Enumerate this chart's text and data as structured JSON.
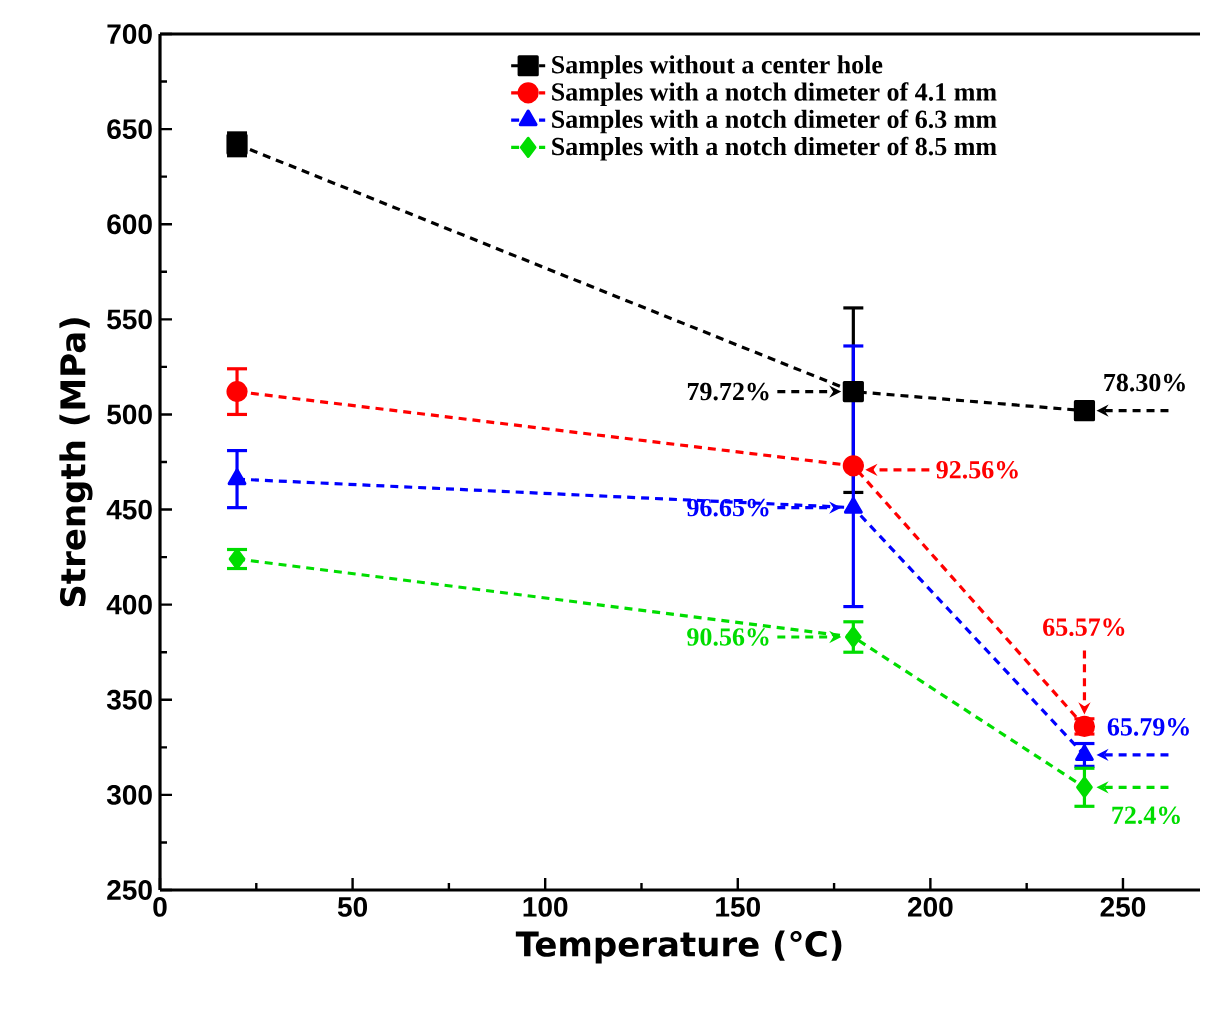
{
  "chart_data": {
    "type": "line",
    "xlabel": "Temperature (℃)",
    "ylabel": "Strength (MPa)",
    "x": [
      20,
      180,
      240
    ],
    "xlim": [
      0,
      270
    ],
    "ylim": [
      250,
      700
    ],
    "xticks": [
      0,
      50,
      100,
      150,
      200,
      250
    ],
    "yticks": [
      250,
      300,
      350,
      400,
      450,
      500,
      550,
      600,
      650,
      700
    ],
    "grid": false,
    "legend": "top right",
    "line_style": "dashed",
    "series": [
      {
        "name": "Samples without a center hole",
        "color": "#000000",
        "marker": "square",
        "values": [
          642,
          512,
          502
        ],
        "errors": [
          6,
          [
            459,
            556
          ],
          4
        ]
      },
      {
        "name": "Samples with a notch dimeter of 4.1 mm",
        "color": "#ff0000",
        "marker": "circle",
        "values": [
          512,
          473,
          336
        ],
        "errors": [
          12,
          null,
          4
        ]
      },
      {
        "name": "Samples with a notch dimeter of 6.3 mm",
        "color": "#0000ff",
        "marker": "triangle",
        "values": [
          466,
          451,
          321
        ],
        "errors": [
          15,
          [
            399,
            536
          ],
          6
        ]
      },
      {
        "name": "Samples with a notch dimeter of 8.5 mm",
        "color": "#00dd00",
        "marker": "diamond",
        "values": [
          424,
          383,
          304
        ],
        "errors": [
          5,
          8,
          10
        ]
      }
    ],
    "annotations": [
      "79.72%",
      "78.30%",
      "92.56%",
      "65.57%",
      "96.65%",
      "65.79%",
      "90.56%",
      "72.4%"
    ]
  }
}
